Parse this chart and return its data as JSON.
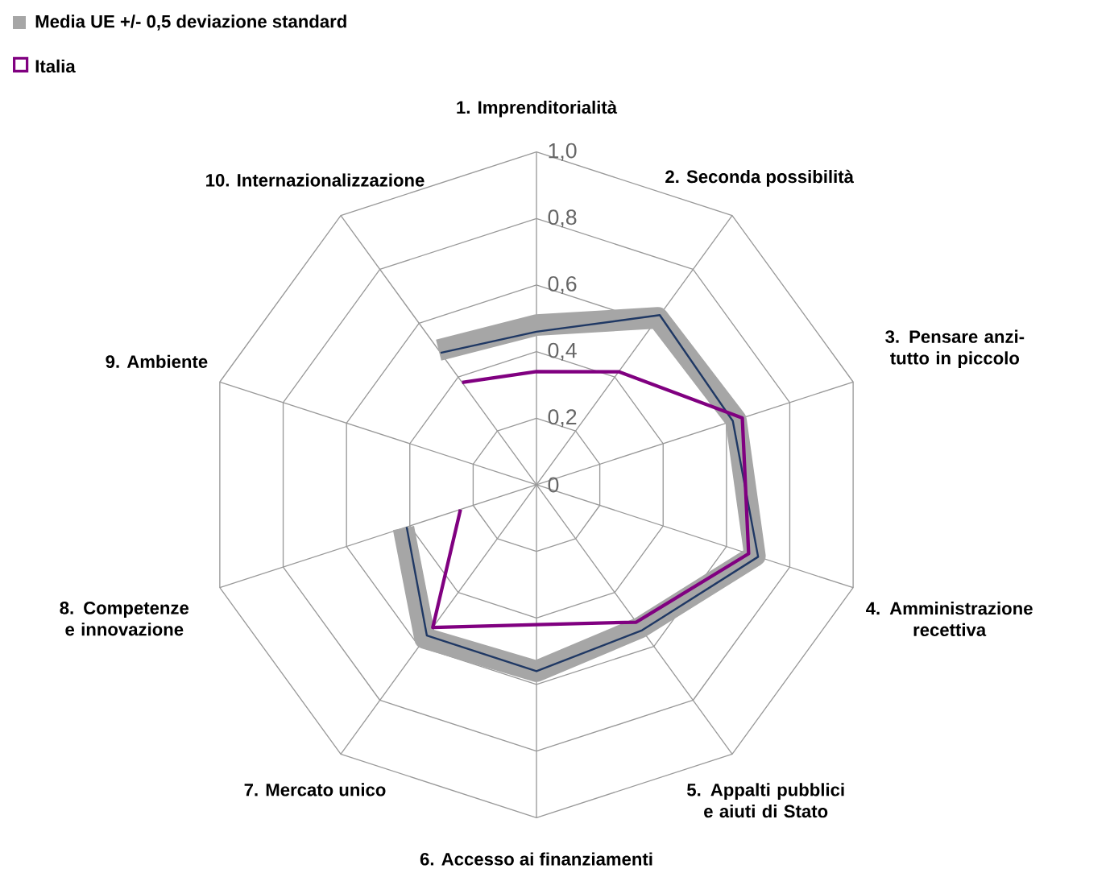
{
  "chart_data": {
    "type": "radar",
    "categories": [
      "1. Imprenditorialità",
      "2. Seconda possibilità",
      "3. Pensare anzi-tutto in piccolo",
      "4. Amministrazione recettiva",
      "5. Appalti pubblici e aiuti di Stato",
      "6. Accesso ai finanziamenti",
      "7. Mercato unico",
      "8. Competenze e innovazione",
      "9. Ambiente",
      "10. Internazionalizzazione"
    ],
    "series": [
      {
        "name": "Media UE +/- 0,5 deviazione standard",
        "color": "#a6a6a6",
        "values": [
          0.48,
          0.62,
          0.63,
          0.69,
          0.53,
          0.56,
          0.57,
          0.42,
          null,
          0.5
        ]
      },
      {
        "color": "#1f3864",
        "values": [
          0.46,
          0.63,
          0.62,
          0.7,
          0.54,
          0.56,
          0.56,
          0.41,
          null,
          0.49
        ]
      },
      {
        "name": "Italia",
        "color": "#800080",
        "values": [
          0.34,
          0.42,
          0.65,
          0.67,
          0.51,
          0.42,
          0.53,
          0.24,
          null,
          0.38
        ]
      }
    ],
    "ylim": [
      0,
      1
    ],
    "yticks": [
      0,
      {
        "value": 0.2,
        "label": "0,2"
      },
      {
        "value": 0.4,
        "label": "0,4"
      },
      {
        "value": 0.6,
        "label": "0,6"
      },
      {
        "value": 0.8,
        "label": "0,8"
      },
      {
        "value": 1.0,
        "label": "1,0"
      }
    ],
    "grid": true,
    "legend": "top left",
    "marker": "none"
  }
}
